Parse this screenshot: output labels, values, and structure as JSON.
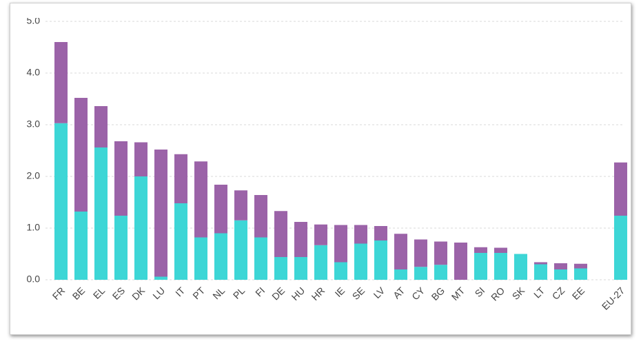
{
  "chart_data": {
    "type": "stacked_bar",
    "categories": [
      "FR",
      "BE",
      "EL",
      "ES",
      "DK",
      "LU",
      "IT",
      "PT",
      "NL",
      "PL",
      "FI",
      "DE",
      "HU",
      "HR",
      "IE",
      "SE",
      "LV",
      "AT",
      "CY",
      "BG",
      "MT",
      "SI",
      "RO",
      "SK",
      "LT",
      "CZ",
      "EE",
      null,
      "EU-27"
    ],
    "series": [
      {
        "color": "#3dd6d6",
        "values": [
          3.03,
          1.32,
          2.56,
          1.24,
          2.0,
          0.06,
          1.48,
          0.82,
          0.9,
          1.15,
          0.82,
          0.44,
          0.44,
          0.67,
          0.34,
          0.7,
          0.76,
          0.2,
          0.25,
          0.29,
          0,
          0.52,
          0.52,
          0.5,
          0.3,
          0.2,
          0.22,
          null,
          1.24
        ]
      },
      {
        "color": "#9b63a8",
        "values": [
          1.57,
          2.2,
          0.8,
          1.44,
          0.66,
          2.46,
          0.95,
          1.47,
          0.94,
          0.58,
          0.82,
          0.89,
          0.68,
          0.4,
          0.72,
          0.36,
          0.28,
          0.69,
          0.53,
          0.45,
          0.72,
          0.11,
          0.1,
          0,
          0.04,
          0.12,
          0.09,
          null,
          1.03
        ]
      }
    ],
    "ylim": [
      0,
      5
    ],
    "yticks": [
      {
        "value": 0,
        "label": "0.0"
      },
      {
        "value": 1,
        "label": "1.0"
      },
      {
        "value": 2,
        "label": "2.0"
      },
      {
        "value": 3,
        "label": "3.0"
      },
      {
        "value": 4,
        "label": "4.0"
      },
      {
        "value": 5,
        "label": "5.0"
      }
    ],
    "grid": true
  }
}
